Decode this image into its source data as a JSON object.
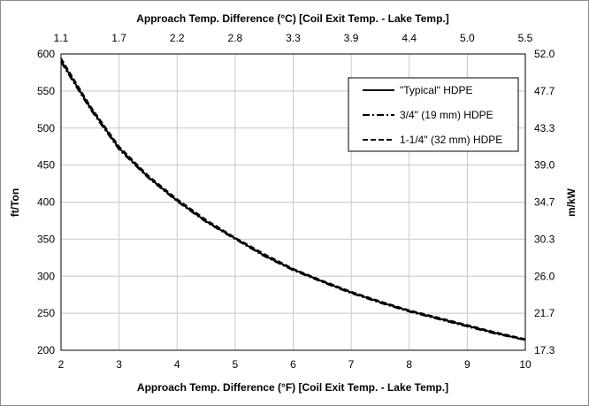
{
  "chart_data": {
    "type": "line",
    "xlabel_bottom": "Approach Temp. Difference (°F) [Coil Exit Temp. - Lake Temp.]",
    "xlabel_top": "Approach Temp. Difference (°C) [Coil Exit Temp. - Lake Temp.]",
    "ylabel_left": "ft/Ton",
    "ylabel_right": "m/kW",
    "xlim": [
      2,
      10
    ],
    "ylim": [
      200,
      600
    ],
    "x_ticks": [
      "2",
      "3",
      "4",
      "5",
      "6",
      "7",
      "8",
      "9",
      "10"
    ],
    "y_ticks": [
      "200",
      "250",
      "300",
      "350",
      "400",
      "450",
      "500",
      "550",
      "600"
    ],
    "top_ticks": [
      "1.1",
      "1.7",
      "2.2",
      "2.8",
      "3.3",
      "3.9",
      "4.4",
      "5.0",
      "5.5"
    ],
    "right_ticks": [
      "17.3",
      "21.7",
      "26.0",
      "30.3",
      "34.7",
      "39.0",
      "43.3",
      "47.7",
      "52.0"
    ],
    "grid": true,
    "legend_position": "top-right",
    "line_color": "#000000",
    "series": [
      {
        "name": "\"Typical\" HDPE",
        "style": "solid",
        "x": [
          2,
          2.5,
          3,
          3.5,
          4,
          4.5,
          5,
          5.5,
          6,
          6.5,
          7,
          7.5,
          8,
          8.5,
          9,
          9.5,
          10
        ],
        "y": [
          591,
          528,
          473,
          434,
          402,
          374,
          351,
          328,
          309,
          293,
          278,
          265,
          253,
          243,
          233,
          223,
          214
        ]
      },
      {
        "name": "3/4\" (19 mm) HDPE",
        "style": "dashdot",
        "x": [
          2,
          2.5,
          3,
          3.5,
          4,
          4.5,
          5,
          5.5,
          6,
          6.5,
          7,
          7.5,
          8,
          8.5,
          9,
          9.5,
          10
        ],
        "y": [
          589,
          526,
          471,
          433,
          401,
          373,
          350,
          327,
          308,
          292,
          277,
          264,
          252,
          242,
          232,
          222,
          214
        ]
      },
      {
        "name": "1-1/4\" (32 mm) HDPE",
        "style": "dashed",
        "x": [
          2,
          2.5,
          3,
          3.5,
          4,
          4.5,
          5,
          5.5,
          6,
          6.5,
          7,
          7.5,
          8,
          8.5,
          9,
          9.5,
          10
        ],
        "y": [
          594,
          530,
          475,
          436,
          404,
          376,
          352,
          330,
          310,
          294,
          279,
          266,
          254,
          244,
          234,
          224,
          215
        ]
      }
    ]
  }
}
